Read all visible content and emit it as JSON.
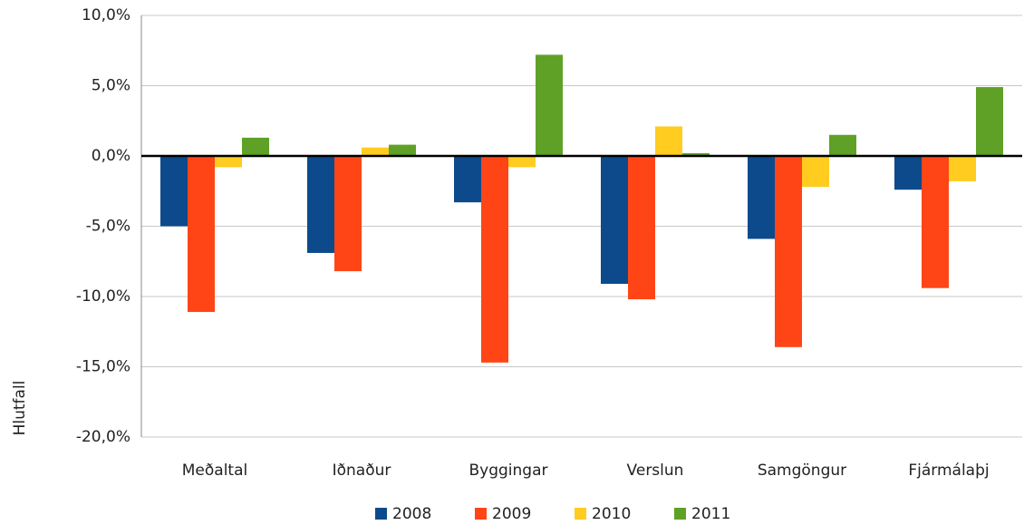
{
  "chart_data": {
    "type": "bar",
    "y_label": "Hlutfall",
    "categories": [
      "Meðaltal",
      "Iðnaður",
      "Byggingar",
      "Verslun",
      "Samgöngur",
      "Fjármálaþj"
    ],
    "series": [
      {
        "name": "2008",
        "color": "#0d4a8c",
        "values": [
          -5.0,
          -6.9,
          -3.3,
          -9.1,
          -5.9,
          -2.4
        ]
      },
      {
        "name": "2009",
        "color": "#ff4516",
        "values": [
          -11.1,
          -8.2,
          -14.7,
          -10.2,
          -13.6,
          -9.4
        ]
      },
      {
        "name": "2010",
        "color": "#ffcc1f",
        "values": [
          -0.8,
          0.6,
          -0.8,
          2.1,
          -2.2,
          -1.8
        ]
      },
      {
        "name": "2011",
        "color": "#5ea126",
        "values": [
          1.3,
          0.8,
          7.2,
          0.2,
          1.5,
          4.9
        ]
      }
    ],
    "ylim": [
      -20,
      10
    ],
    "yticks": [
      {
        "value": -20,
        "label": "-20,0%"
      },
      {
        "value": -15,
        "label": "-15,0%"
      },
      {
        "value": -10,
        "label": "-10,0%"
      },
      {
        "value": -5,
        "label": "-5,0%"
      },
      {
        "value": 0,
        "label": "0,0%"
      },
      {
        "value": 5,
        "label": "5,0%"
      },
      {
        "value": 10,
        "label": "10,0%"
      }
    ],
    "grid": true,
    "legend": "bottom"
  }
}
